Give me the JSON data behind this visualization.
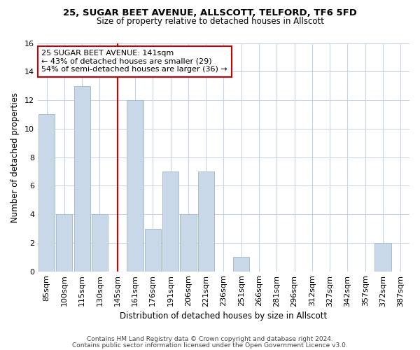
{
  "title_line1": "25, SUGAR BEET AVENUE, ALLSCOTT, TELFORD, TF6 5FD",
  "title_line2": "Size of property relative to detached houses in Allscott",
  "xlabel": "Distribution of detached houses by size in Allscott",
  "ylabel": "Number of detached properties",
  "bar_labels": [
    "85sqm",
    "100sqm",
    "115sqm",
    "130sqm",
    "145sqm",
    "161sqm",
    "176sqm",
    "191sqm",
    "206sqm",
    "221sqm",
    "236sqm",
    "251sqm",
    "266sqm",
    "281sqm",
    "296sqm",
    "312sqm",
    "327sqm",
    "342sqm",
    "357sqm",
    "372sqm",
    "387sqm"
  ],
  "bar_values": [
    11,
    4,
    13,
    4,
    0,
    12,
    3,
    7,
    4,
    7,
    0,
    1,
    0,
    0,
    0,
    0,
    0,
    0,
    0,
    2,
    0
  ],
  "bar_color": "#c8d8e8",
  "bar_edge_color": "#a8bece",
  "vline_x_index": 4,
  "vline_color": "#cc0000",
  "ylim": [
    0,
    16
  ],
  "yticks": [
    0,
    2,
    4,
    6,
    8,
    10,
    12,
    14,
    16
  ],
  "annotation_text": "25 SUGAR BEET AVENUE: 141sqm\n← 43% of detached houses are smaller (29)\n54% of semi-detached houses are larger (36) →",
  "annotation_box_color": "#ffffff",
  "annotation_box_edge": "#cc0000",
  "footer_line1": "Contains HM Land Registry data © Crown copyright and database right 2024.",
  "footer_line2": "Contains public sector information licensed under the Open Government Licence v3.0.",
  "bg_color": "#ffffff",
  "grid_color": "#c8d4e0",
  "title_fontsize": 9.5,
  "subtitle_fontsize": 8.5,
  "xlabel_fontsize": 8.5,
  "ylabel_fontsize": 8.5,
  "tick_fontsize": 8,
  "annot_fontsize": 8,
  "footer_fontsize": 6.5
}
